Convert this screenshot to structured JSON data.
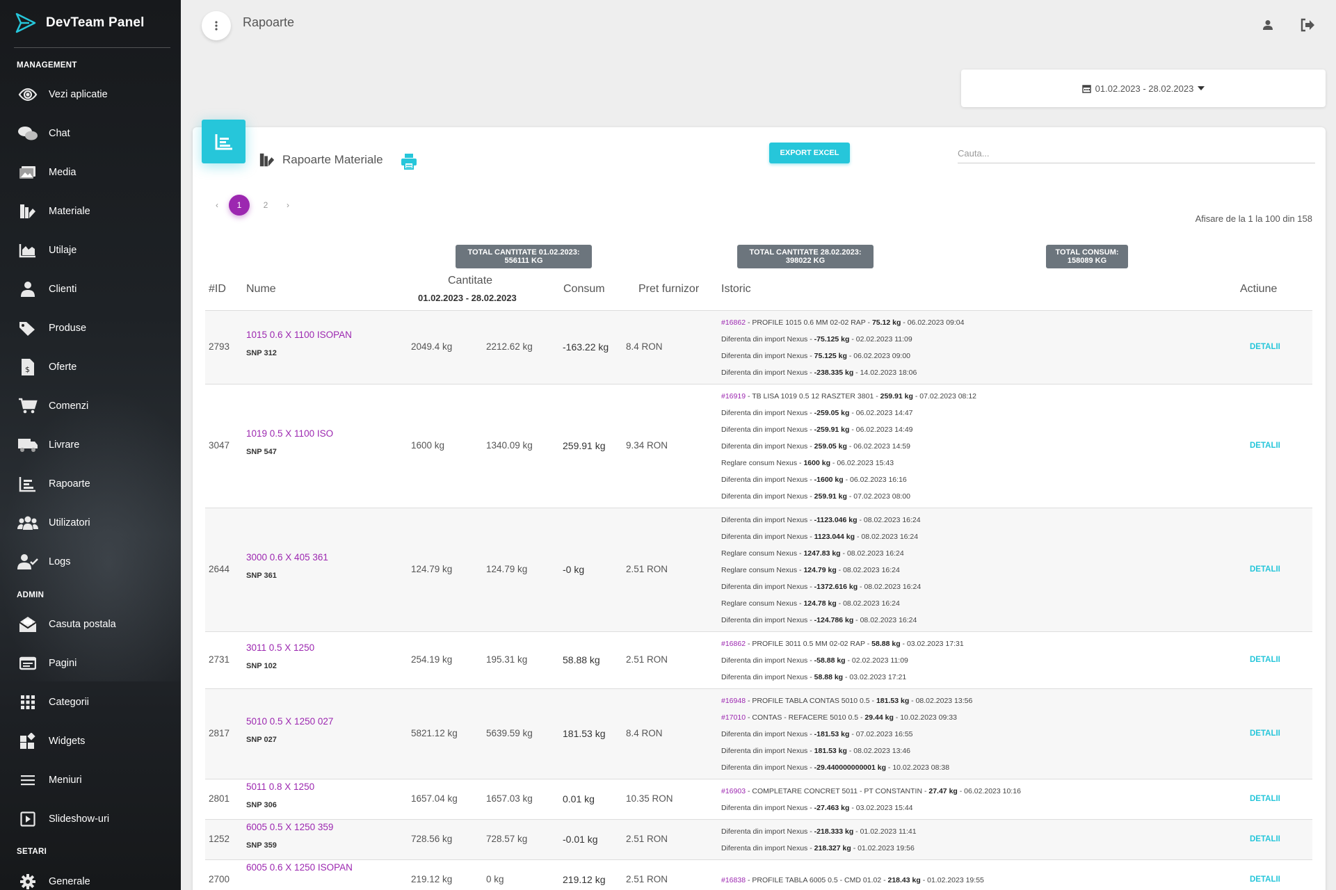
{
  "app": {
    "title": "DevTeam Panel"
  },
  "sidebar": {
    "sections": [
      "MANAGEMENT",
      "ADMIN",
      "SETARI"
    ],
    "items": [
      {
        "label": "Vezi aplicatie",
        "icon": "eye-icon"
      },
      {
        "label": "Chat",
        "icon": "chat-icon"
      },
      {
        "label": "Media",
        "icon": "media-icon"
      },
      {
        "label": "Materiale",
        "icon": "materials-icon"
      },
      {
        "label": "Utilaje",
        "icon": "chart-area-icon"
      },
      {
        "label": "Clienti",
        "icon": "user-tie-icon"
      },
      {
        "label": "Produse",
        "icon": "tags-icon"
      },
      {
        "label": "Oferte",
        "icon": "invoice-icon"
      },
      {
        "label": "Comenzi",
        "icon": "cart-icon"
      },
      {
        "label": "Livrare",
        "icon": "truck-icon"
      },
      {
        "label": "Rapoarte",
        "icon": "report-chart-icon"
      },
      {
        "label": "Utilizatori",
        "icon": "users-icon"
      },
      {
        "label": "Logs",
        "icon": "user-check-icon"
      },
      {
        "label": "Casuta postala",
        "icon": "mailbox-icon"
      },
      {
        "label": "Pagini",
        "icon": "window-icon"
      },
      {
        "label": "Categorii",
        "icon": "grid-icon"
      },
      {
        "label": "Widgets",
        "icon": "widgets-icon"
      },
      {
        "label": "Meniuri",
        "icon": "menu-icon"
      },
      {
        "label": "Slideshow-uri",
        "icon": "slideshow-icon"
      },
      {
        "label": "Generale",
        "icon": "gear-icon"
      }
    ]
  },
  "header": {
    "title": "Rapoarte"
  },
  "date_range": {
    "value": "01.02.2023 - 28.02.2023"
  },
  "card": {
    "title": "Rapoarte Materiale",
    "export_label": "EXPORT EXCEL",
    "search_placeholder": "Cauta...",
    "pages": [
      "1",
      "2"
    ],
    "prev": "‹",
    "next": "›",
    "showing": "Afisare de la 1 la 100 din 158",
    "totals": [
      {
        "line1": "TOTAL CANTITATE 01.02.2023:",
        "line2": "556111 KG"
      },
      {
        "line1": "TOTAL CANTITATE 28.02.2023:",
        "line2": "398022 KG"
      },
      {
        "line1": "TOTAL CONSUM:",
        "line2": "158089 KG"
      }
    ]
  },
  "table": {
    "headers": {
      "id": "#ID",
      "name": "Nume",
      "cantitate": "Cantitate",
      "date_start": "01.02.2023",
      "date_sep": " - ",
      "date_end": "28.02.2023",
      "consum": "Consum",
      "pret": "Pret furnizor",
      "istoric": "Istoric",
      "actiune": "Actiune"
    },
    "detail_label": "DETALII",
    "rows": [
      {
        "id": "2793",
        "name": "1015 0.6 X 1100 ISOPAN",
        "snp": "SNP 312",
        "q1": "2049.4 kg",
        "q2": "2212.62 kg",
        "consum": "-163.22 kg",
        "pret": "8.4 RON",
        "history": [
          {
            "ord": "#16862",
            "pre": " - PROFILE 1015 0.6 MM 02-02 RAP - ",
            "val": "75.12 kg",
            "post": " - 06.02.2023 09:04"
          },
          {
            "ord": "",
            "pre": "Diferenta din import Nexus - ",
            "val": "-75.125 kg",
            "post": " - 02.02.2023 11:09"
          },
          {
            "ord": "",
            "pre": "Diferenta din import Nexus - ",
            "val": "75.125 kg",
            "post": " - 06.02.2023 09:00"
          },
          {
            "ord": "",
            "pre": "Diferenta din import Nexus - ",
            "val": "-238.335 kg",
            "post": " - 14.02.2023 18:06"
          }
        ]
      },
      {
        "id": "3047",
        "name": "1019 0.5 X 1100 ISO",
        "snp": "SNP 547",
        "q1": "1600 kg",
        "q2": "1340.09 kg",
        "consum": "259.91 kg",
        "pret": "9.34 RON",
        "history": [
          {
            "ord": "#16919",
            "pre": " - TB LISA 1019 0.5 12 RASZTER 3801 - ",
            "val": "259.91 kg",
            "post": " - 07.02.2023 08:12"
          },
          {
            "ord": "",
            "pre": "Diferenta din import Nexus - ",
            "val": "-259.05 kg",
            "post": " - 06.02.2023 14:47"
          },
          {
            "ord": "",
            "pre": "Diferenta din import Nexus - ",
            "val": "-259.91 kg",
            "post": " - 06.02.2023 14:49"
          },
          {
            "ord": "",
            "pre": "Diferenta din import Nexus - ",
            "val": "259.05 kg",
            "post": " - 06.02.2023 14:59"
          },
          {
            "ord": "",
            "pre": "Reglare consum Nexus - ",
            "val": "1600 kg",
            "post": " - 06.02.2023 15:43"
          },
          {
            "ord": "",
            "pre": "Diferenta din import Nexus - ",
            "val": "-1600 kg",
            "post": " - 06.02.2023 16:16"
          },
          {
            "ord": "",
            "pre": "Diferenta din import Nexus - ",
            "val": "259.91 kg",
            "post": " - 07.02.2023 08:00"
          }
        ]
      },
      {
        "id": "2644",
        "name": "3000 0.6 X 405 361",
        "snp": "SNP 361",
        "q1": "124.79 kg",
        "q2": "124.79 kg",
        "consum": "-0 kg",
        "pret": "2.51 RON",
        "history": [
          {
            "ord": "",
            "pre": "Diferenta din import Nexus - ",
            "val": "-1123.046 kg",
            "post": " - 08.02.2023 16:24"
          },
          {
            "ord": "",
            "pre": "Diferenta din import Nexus - ",
            "val": "1123.044 kg",
            "post": " - 08.02.2023 16:24"
          },
          {
            "ord": "",
            "pre": "Reglare consum Nexus - ",
            "val": "1247.83 kg",
            "post": " - 08.02.2023 16:24"
          },
          {
            "ord": "",
            "pre": "Reglare consum Nexus - ",
            "val": "124.79 kg",
            "post": " - 08.02.2023 16:24"
          },
          {
            "ord": "",
            "pre": "Diferenta din import Nexus - ",
            "val": "-1372.616 kg",
            "post": " - 08.02.2023 16:24"
          },
          {
            "ord": "",
            "pre": "Reglare consum Nexus - ",
            "val": "124.78 kg",
            "post": " - 08.02.2023 16:24"
          },
          {
            "ord": "",
            "pre": "Diferenta din import Nexus - ",
            "val": "-124.786 kg",
            "post": " - 08.02.2023 16:24"
          }
        ]
      },
      {
        "id": "2731",
        "name": "3011 0.5 X 1250",
        "snp": "SNP 102",
        "q1": "254.19 kg",
        "q2": "195.31 kg",
        "consum": "58.88 kg",
        "pret": "2.51 RON",
        "history": [
          {
            "ord": "#16862",
            "pre": " - PROFILE 3011 0.5 MM 02-02 RAP - ",
            "val": "58.88 kg",
            "post": " - 03.02.2023 17:31"
          },
          {
            "ord": "",
            "pre": "Diferenta din import Nexus - ",
            "val": "-58.88 kg",
            "post": " - 02.02.2023 11:09"
          },
          {
            "ord": "",
            "pre": "Diferenta din import Nexus - ",
            "val": "58.88 kg",
            "post": " - 03.02.2023 17:21"
          }
        ]
      },
      {
        "id": "2817",
        "name": "5010 0.5 X 1250 027",
        "snp": "SNP 027",
        "q1": "5821.12 kg",
        "q2": "5639.59 kg",
        "consum": "181.53 kg",
        "pret": "8.4 RON",
        "history": [
          {
            "ord": "#16948",
            "pre": " - PROFILE TABLA CONTAS 5010 0.5 - ",
            "val": "181.53 kg",
            "post": " - 08.02.2023 13:56"
          },
          {
            "ord": "#17010",
            "pre": " - CONTAS - REFACERE 5010 0.5 - ",
            "val": "29.44 kg",
            "post": " - 10.02.2023 09:33"
          },
          {
            "ord": "",
            "pre": "Diferenta din import Nexus - ",
            "val": "-181.53 kg",
            "post": " - 07.02.2023 16:55"
          },
          {
            "ord": "",
            "pre": "Diferenta din import Nexus - ",
            "val": "181.53 kg",
            "post": " - 08.02.2023 13:46"
          },
          {
            "ord": "",
            "pre": "Diferenta din import Nexus - ",
            "val": "-29.440000000001 kg",
            "post": " - 10.02.2023 08:38"
          }
        ]
      },
      {
        "id": "2801",
        "name": "5011 0.8 X 1250",
        "snp": "SNP 306",
        "q1": "1657.04 kg",
        "q2": "1657.03 kg",
        "consum": "0.01 kg",
        "pret": "10.35 RON",
        "history": [
          {
            "ord": "#16903",
            "pre": " - COMPLETARE CONCRET 5011 - PT CONSTANTIN - ",
            "val": "27.47 kg",
            "post": " - 06.02.2023 10:16"
          },
          {
            "ord": "",
            "pre": "Diferenta din import Nexus - ",
            "val": "-27.463 kg",
            "post": " - 03.02.2023 15:44"
          }
        ]
      },
      {
        "id": "1252",
        "name": "6005 0.5 X 1250 359",
        "snp": "SNP 359",
        "q1": "728.56 kg",
        "q2": "728.57 kg",
        "consum": "-0.01 kg",
        "pret": "2.51 RON",
        "history": [
          {
            "ord": "",
            "pre": "Diferenta din import Nexus - ",
            "val": "-218.333 kg",
            "post": " - 01.02.2023 11:41"
          },
          {
            "ord": "",
            "pre": "Diferenta din import Nexus - ",
            "val": "218.327 kg",
            "post": " - 01.02.2023 19:56"
          }
        ]
      },
      {
        "id": "2700",
        "name": "6005 0.6 X 1250 ISOPAN",
        "snp": "",
        "q1": "219.12 kg",
        "q2": "0 kg",
        "consum": "219.12 kg",
        "pret": "2.51 RON",
        "history": [
          {
            "ord": "#16838",
            "pre": " - PROFILE TABLA 6005 0.5 - CMD 01.02 - ",
            "val": "218.43 kg",
            "post": " - 01.02.2023 19:55"
          }
        ]
      }
    ]
  }
}
